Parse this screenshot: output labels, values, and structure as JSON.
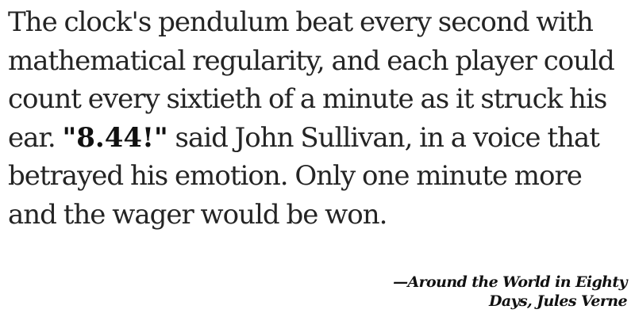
{
  "quote": {
    "before_highlight": "The clock's pendulum beat every second with mathematical regularity, and each player could count every sixtieth of a minute as it struck his ear. ",
    "highlight": "\"8.44!\"",
    "after_highlight": " said John Sullivan, in a voice that betrayed his emotion. Only one minute more and the wager would be won."
  },
  "attribution": {
    "text": "—Around the World in Eighty Days, Jules Verne"
  }
}
